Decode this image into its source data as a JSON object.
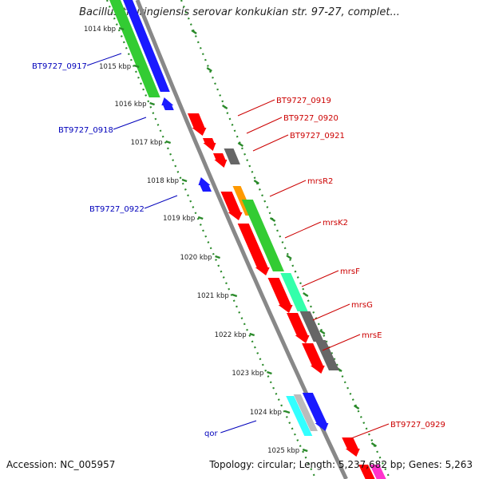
{
  "title": "Bacillus thuringiensis serovar konkukian str. 97-27, complet...",
  "footer": {
    "accession": "Accession: NC_005957",
    "summary": "Topology: circular; Length: 5,237,682 bp; Genes: 5,263"
  },
  "colors": {
    "backbone": "#888888",
    "scale_tick": "#2a8a2a",
    "forward_label": "#cc0000",
    "reverse_label": "#0000bb"
  },
  "ticks": [
    {
      "label": "1014 kbp"
    },
    {
      "label": "1015 kbp"
    },
    {
      "label": "1016 kbp"
    },
    {
      "label": "1017 kbp"
    },
    {
      "label": "1018 kbp"
    },
    {
      "label": "1019 kbp"
    },
    {
      "label": "1020 kbp"
    },
    {
      "label": "1021 kbp"
    },
    {
      "label": "1022 kbp"
    },
    {
      "label": "1023 kbp"
    },
    {
      "label": "1024 kbp"
    },
    {
      "label": "1025 kbp"
    }
  ],
  "labels": [
    {
      "text": "BT9727_0917",
      "strand": "reverse"
    },
    {
      "text": "BT9727_0918",
      "strand": "reverse"
    },
    {
      "text": "BT9727_0922",
      "strand": "reverse"
    },
    {
      "text": "qor",
      "strand": "reverse"
    },
    {
      "text": "BT9727_0919",
      "strand": "forward"
    },
    {
      "text": "BT9727_0920",
      "strand": "forward"
    },
    {
      "text": "BT9727_0921",
      "strand": "forward"
    },
    {
      "text": "mrsR2",
      "strand": "forward"
    },
    {
      "text": "mrsK2",
      "strand": "forward"
    },
    {
      "text": "mrsF",
      "strand": "forward"
    },
    {
      "text": "mrsG",
      "strand": "forward"
    },
    {
      "text": "mrsE",
      "strand": "forward"
    },
    {
      "text": "BT9727_0929",
      "strand": "forward"
    }
  ]
}
